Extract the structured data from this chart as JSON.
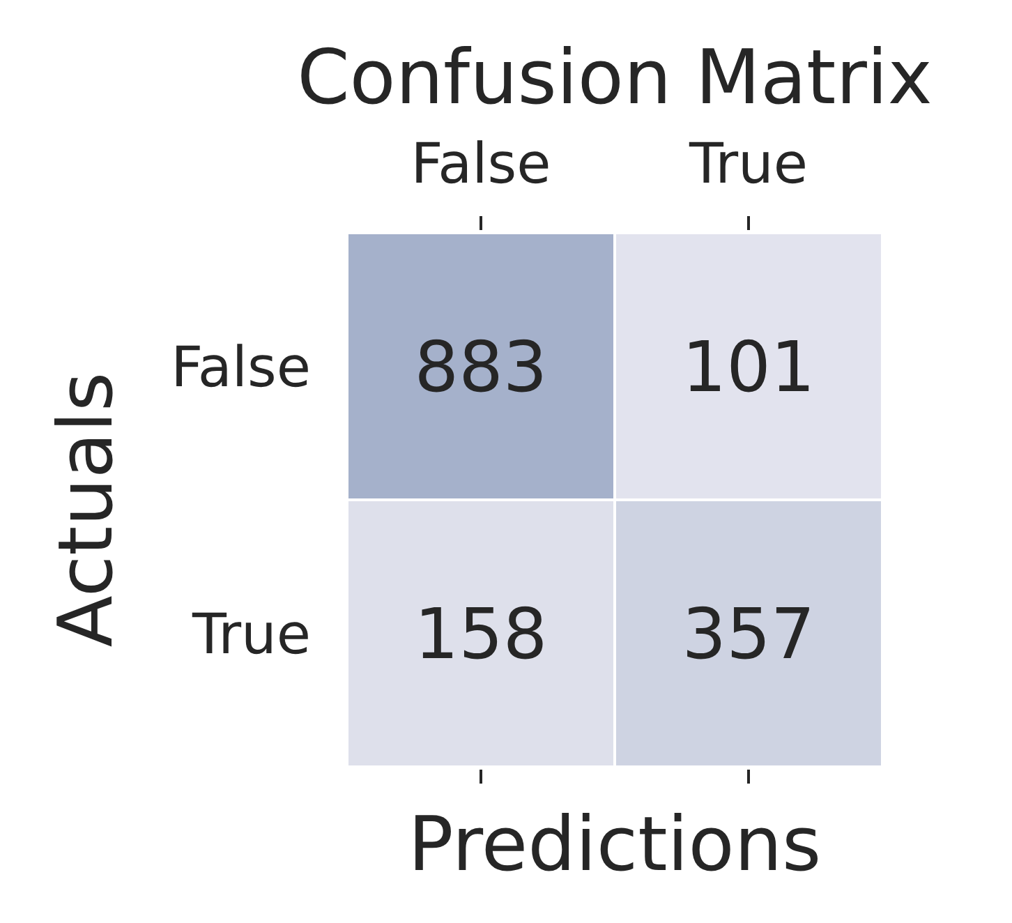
{
  "chart_data": {
    "type": "heatmap",
    "title": "Confusion Matrix",
    "xlabel": "Predictions",
    "ylabel": "Actuals",
    "categories": [
      "False",
      "True"
    ],
    "y_categories": [
      "False",
      "True"
    ],
    "cells": [
      [
        883,
        101
      ],
      [
        158,
        357
      ]
    ],
    "data_labels": true
  }
}
